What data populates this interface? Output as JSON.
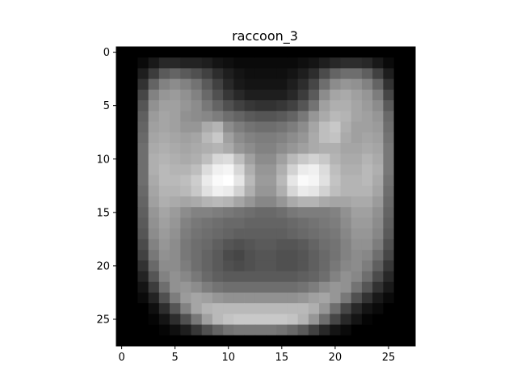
{
  "chart_data": {
    "type": "heatmap",
    "title": "raccoon_3",
    "xlabel": "",
    "ylabel": "",
    "colormap": "gray",
    "xlim": [
      -0.5,
      27.5
    ],
    "ylim": [
      27.5,
      -0.5
    ],
    "x_ticks": [
      0,
      5,
      10,
      15,
      20,
      25
    ],
    "y_ticks": [
      0,
      5,
      10,
      15,
      20,
      25
    ],
    "grid": false,
    "rows": 28,
    "cols": 28,
    "value_range": [
      0,
      255
    ],
    "values": [
      [
        0,
        0,
        0,
        0,
        0,
        0,
        0,
        0,
        0,
        0,
        0,
        0,
        0,
        0,
        0,
        0,
        0,
        0,
        0,
        0,
        0,
        0,
        0,
        0,
        0,
        0,
        0,
        0
      ],
      [
        0,
        0,
        10,
        25,
        40,
        40,
        35,
        35,
        30,
        20,
        15,
        10,
        10,
        10,
        10,
        10,
        10,
        15,
        20,
        30,
        40,
        45,
        45,
        40,
        25,
        10,
        0,
        0
      ],
      [
        0,
        0,
        30,
        60,
        90,
        100,
        90,
        80,
        65,
        45,
        30,
        20,
        15,
        15,
        15,
        15,
        20,
        30,
        45,
        75,
        100,
        110,
        110,
        95,
        65,
        30,
        0,
        0
      ],
      [
        0,
        0,
        50,
        100,
        130,
        140,
        130,
        115,
        90,
        65,
        40,
        25,
        20,
        20,
        20,
        20,
        30,
        45,
        70,
        110,
        140,
        150,
        145,
        130,
        100,
        50,
        0,
        0
      ],
      [
        0,
        0,
        70,
        130,
        150,
        155,
        145,
        130,
        105,
        80,
        55,
        40,
        30,
        30,
        30,
        30,
        40,
        60,
        90,
        140,
        165,
        170,
        160,
        150,
        125,
        70,
        0,
        0
      ],
      [
        0,
        0,
        85,
        145,
        160,
        160,
        150,
        140,
        120,
        100,
        80,
        65,
        55,
        50,
        50,
        55,
        65,
        85,
        115,
        160,
        175,
        175,
        165,
        155,
        140,
        90,
        0,
        0
      ],
      [
        0,
        0,
        95,
        155,
        165,
        160,
        145,
        140,
        135,
        125,
        110,
        100,
        90,
        85,
        85,
        90,
        100,
        120,
        150,
        170,
        185,
        180,
        165,
        160,
        150,
        105,
        0,
        0
      ],
      [
        0,
        0,
        100,
        160,
        165,
        160,
        150,
        150,
        170,
        180,
        140,
        125,
        115,
        110,
        110,
        115,
        125,
        140,
        165,
        190,
        200,
        175,
        160,
        160,
        155,
        110,
        0,
        0
      ],
      [
        0,
        0,
        105,
        165,
        170,
        165,
        160,
        165,
        185,
        200,
        160,
        140,
        130,
        125,
        125,
        130,
        140,
        150,
        170,
        190,
        195,
        170,
        160,
        165,
        160,
        115,
        0,
        0
      ],
      [
        0,
        0,
        110,
        170,
        175,
        170,
        165,
        170,
        175,
        180,
        170,
        150,
        140,
        130,
        130,
        140,
        150,
        160,
        170,
        175,
        175,
        165,
        165,
        170,
        165,
        120,
        0,
        0
      ],
      [
        0,
        0,
        110,
        175,
        180,
        175,
        170,
        175,
        190,
        215,
        220,
        190,
        160,
        140,
        140,
        160,
        185,
        200,
        210,
        200,
        180,
        170,
        170,
        180,
        170,
        120,
        0,
        0
      ],
      [
        0,
        0,
        110,
        175,
        185,
        180,
        180,
        190,
        220,
        240,
        245,
        215,
        175,
        150,
        150,
        175,
        210,
        235,
        240,
        220,
        190,
        175,
        175,
        185,
        175,
        120,
        0,
        0
      ],
      [
        0,
        0,
        110,
        170,
        185,
        185,
        190,
        205,
        235,
        250,
        255,
        230,
        185,
        155,
        155,
        185,
        230,
        250,
        245,
        225,
        195,
        180,
        180,
        185,
        170,
        115,
        0,
        0
      ],
      [
        0,
        0,
        105,
        165,
        180,
        180,
        185,
        200,
        225,
        240,
        235,
        210,
        175,
        150,
        150,
        175,
        215,
        235,
        230,
        210,
        190,
        180,
        180,
        180,
        165,
        110,
        0,
        0
      ],
      [
        0,
        0,
        100,
        160,
        175,
        170,
        165,
        170,
        180,
        185,
        180,
        165,
        150,
        135,
        135,
        150,
        170,
        180,
        180,
        170,
        165,
        165,
        170,
        170,
        155,
        105,
        0,
        0
      ],
      [
        0,
        0,
        95,
        150,
        165,
        155,
        140,
        130,
        130,
        125,
        120,
        115,
        110,
        105,
        105,
        110,
        120,
        125,
        125,
        125,
        130,
        145,
        160,
        160,
        145,
        100,
        0,
        0
      ],
      [
        0,
        0,
        90,
        145,
        160,
        150,
        130,
        120,
        115,
        110,
        105,
        105,
        100,
        100,
        100,
        100,
        105,
        110,
        115,
        120,
        125,
        140,
        155,
        155,
        140,
        95,
        0,
        0
      ],
      [
        0,
        0,
        85,
        140,
        155,
        145,
        125,
        115,
        110,
        105,
        100,
        95,
        95,
        95,
        95,
        95,
        100,
        105,
        110,
        115,
        120,
        135,
        150,
        150,
        135,
        90,
        0,
        0
      ],
      [
        0,
        0,
        75,
        130,
        150,
        140,
        120,
        110,
        105,
        95,
        85,
        80,
        85,
        90,
        90,
        85,
        85,
        90,
        100,
        110,
        115,
        130,
        145,
        145,
        125,
        80,
        0,
        0
      ],
      [
        0,
        0,
        65,
        120,
        145,
        140,
        120,
        110,
        100,
        90,
        75,
        70,
        80,
        85,
        85,
        80,
        80,
        85,
        95,
        105,
        115,
        130,
        140,
        135,
        110,
        70,
        0,
        0
      ],
      [
        0,
        0,
        50,
        105,
        140,
        140,
        125,
        110,
        100,
        90,
        80,
        75,
        80,
        85,
        85,
        80,
        80,
        85,
        95,
        105,
        120,
        135,
        140,
        125,
        95,
        55,
        0,
        0
      ],
      [
        0,
        0,
        35,
        85,
        130,
        145,
        135,
        120,
        105,
        95,
        90,
        90,
        90,
        90,
        90,
        90,
        90,
        95,
        100,
        110,
        130,
        145,
        135,
        110,
        75,
        40,
        0,
        0
      ],
      [
        0,
        0,
        20,
        60,
        110,
        145,
        150,
        140,
        125,
        115,
        110,
        110,
        110,
        110,
        110,
        110,
        110,
        115,
        125,
        140,
        150,
        145,
        115,
        85,
        50,
        25,
        0,
        0
      ],
      [
        0,
        0,
        10,
        35,
        80,
        125,
        155,
        165,
        160,
        150,
        145,
        145,
        145,
        145,
        145,
        145,
        145,
        150,
        160,
        165,
        150,
        120,
        80,
        50,
        25,
        10,
        0,
        0
      ],
      [
        0,
        0,
        0,
        15,
        45,
        85,
        130,
        165,
        180,
        185,
        185,
        185,
        185,
        185,
        185,
        185,
        185,
        185,
        175,
        150,
        110,
        70,
        40,
        20,
        10,
        0,
        0,
        0
      ],
      [
        0,
        0,
        0,
        5,
        20,
        45,
        80,
        120,
        160,
        185,
        195,
        200,
        200,
        200,
        200,
        200,
        195,
        180,
        150,
        110,
        70,
        40,
        20,
        5,
        0,
        0,
        0,
        0
      ],
      [
        0,
        0,
        0,
        0,
        5,
        15,
        30,
        55,
        80,
        100,
        115,
        120,
        120,
        120,
        120,
        115,
        105,
        90,
        65,
        40,
        20,
        10,
        0,
        0,
        0,
        0,
        0,
        0
      ],
      [
        0,
        0,
        0,
        0,
        0,
        0,
        0,
        0,
        0,
        0,
        0,
        0,
        0,
        0,
        0,
        0,
        0,
        0,
        0,
        0,
        0,
        0,
        0,
        0,
        0,
        0,
        0,
        0
      ]
    ]
  }
}
